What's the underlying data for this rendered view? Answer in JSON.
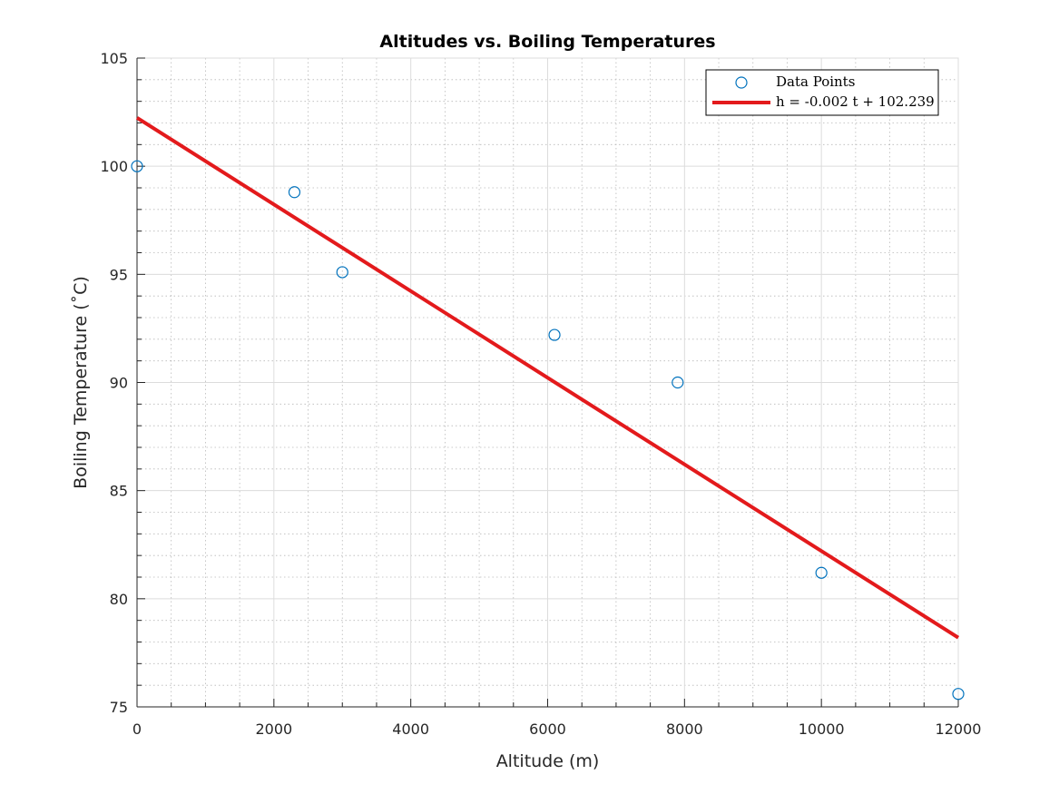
{
  "chart_data": {
    "type": "scatter",
    "title": "Altitudes vs. Boiling Temperatures",
    "xlabel": "Altitude (m)",
    "ylabel": "Boiling Temperature (˚C)",
    "xlim": [
      0,
      12000
    ],
    "ylim": [
      75,
      105
    ],
    "xticks": [
      0,
      2000,
      4000,
      6000,
      8000,
      10000,
      12000
    ],
    "yticks": [
      75,
      80,
      85,
      90,
      95,
      100,
      105
    ],
    "x_minor_step": 500,
    "y_minor_step": 1,
    "grid": true,
    "minor_grid": true,
    "legend_position": "top-right",
    "series": [
      {
        "name": "Data Points",
        "kind": "scatter",
        "marker": "open-circle",
        "color": "#0072bd",
        "x": [
          0,
          2300,
          3000,
          6100,
          7900,
          10000,
          12000
        ],
        "y": [
          100.0,
          98.8,
          95.1,
          92.2,
          90.0,
          81.2,
          75.6
        ]
      },
      {
        "name": "h = -0.002 t + 102.239",
        "kind": "line",
        "color": "#e31a1c",
        "x": [
          0,
          12000
        ],
        "y": [
          102.239,
          78.2
        ]
      }
    ]
  }
}
